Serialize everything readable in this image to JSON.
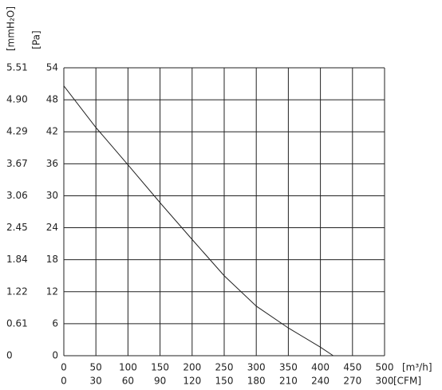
{
  "chart_data": {
    "type": "line",
    "y_unit": "[Pa]",
    "y2_unit": "[mmH₂O]",
    "x_unit": "[m³/h]",
    "x2_unit": "[CFM]",
    "xlim": [
      0,
      500
    ],
    "xticks": [
      0,
      50,
      100,
      150,
      200,
      250,
      300,
      350,
      400,
      450,
      500
    ],
    "x2lim": [
      0,
      300
    ],
    "x2ticks": [
      0,
      30,
      60,
      90,
      120,
      150,
      180,
      210,
      240,
      270,
      300
    ],
    "ylim": [
      0,
      54
    ],
    "yticks": [
      0,
      6,
      12,
      18,
      24,
      30,
      36,
      42,
      48,
      54
    ],
    "y2lim": [
      0,
      5.51
    ],
    "y2ticks": [
      0,
      0.61,
      1.22,
      1.84,
      2.45,
      3.06,
      3.67,
      4.29,
      {
        "value": 4.9,
        "label": "4.90"
      },
      5.51
    ],
    "grid": true,
    "series": [
      {
        "color": "#222222",
        "x": [
          0,
          50,
          100,
          150,
          200,
          250,
          300,
          350,
          400,
          420
        ],
        "values": [
          50.6,
          42.8,
          35.8,
          28.7,
          21.8,
          15.0,
          9.3,
          5.2,
          1.6,
          0
        ]
      }
    ]
  }
}
